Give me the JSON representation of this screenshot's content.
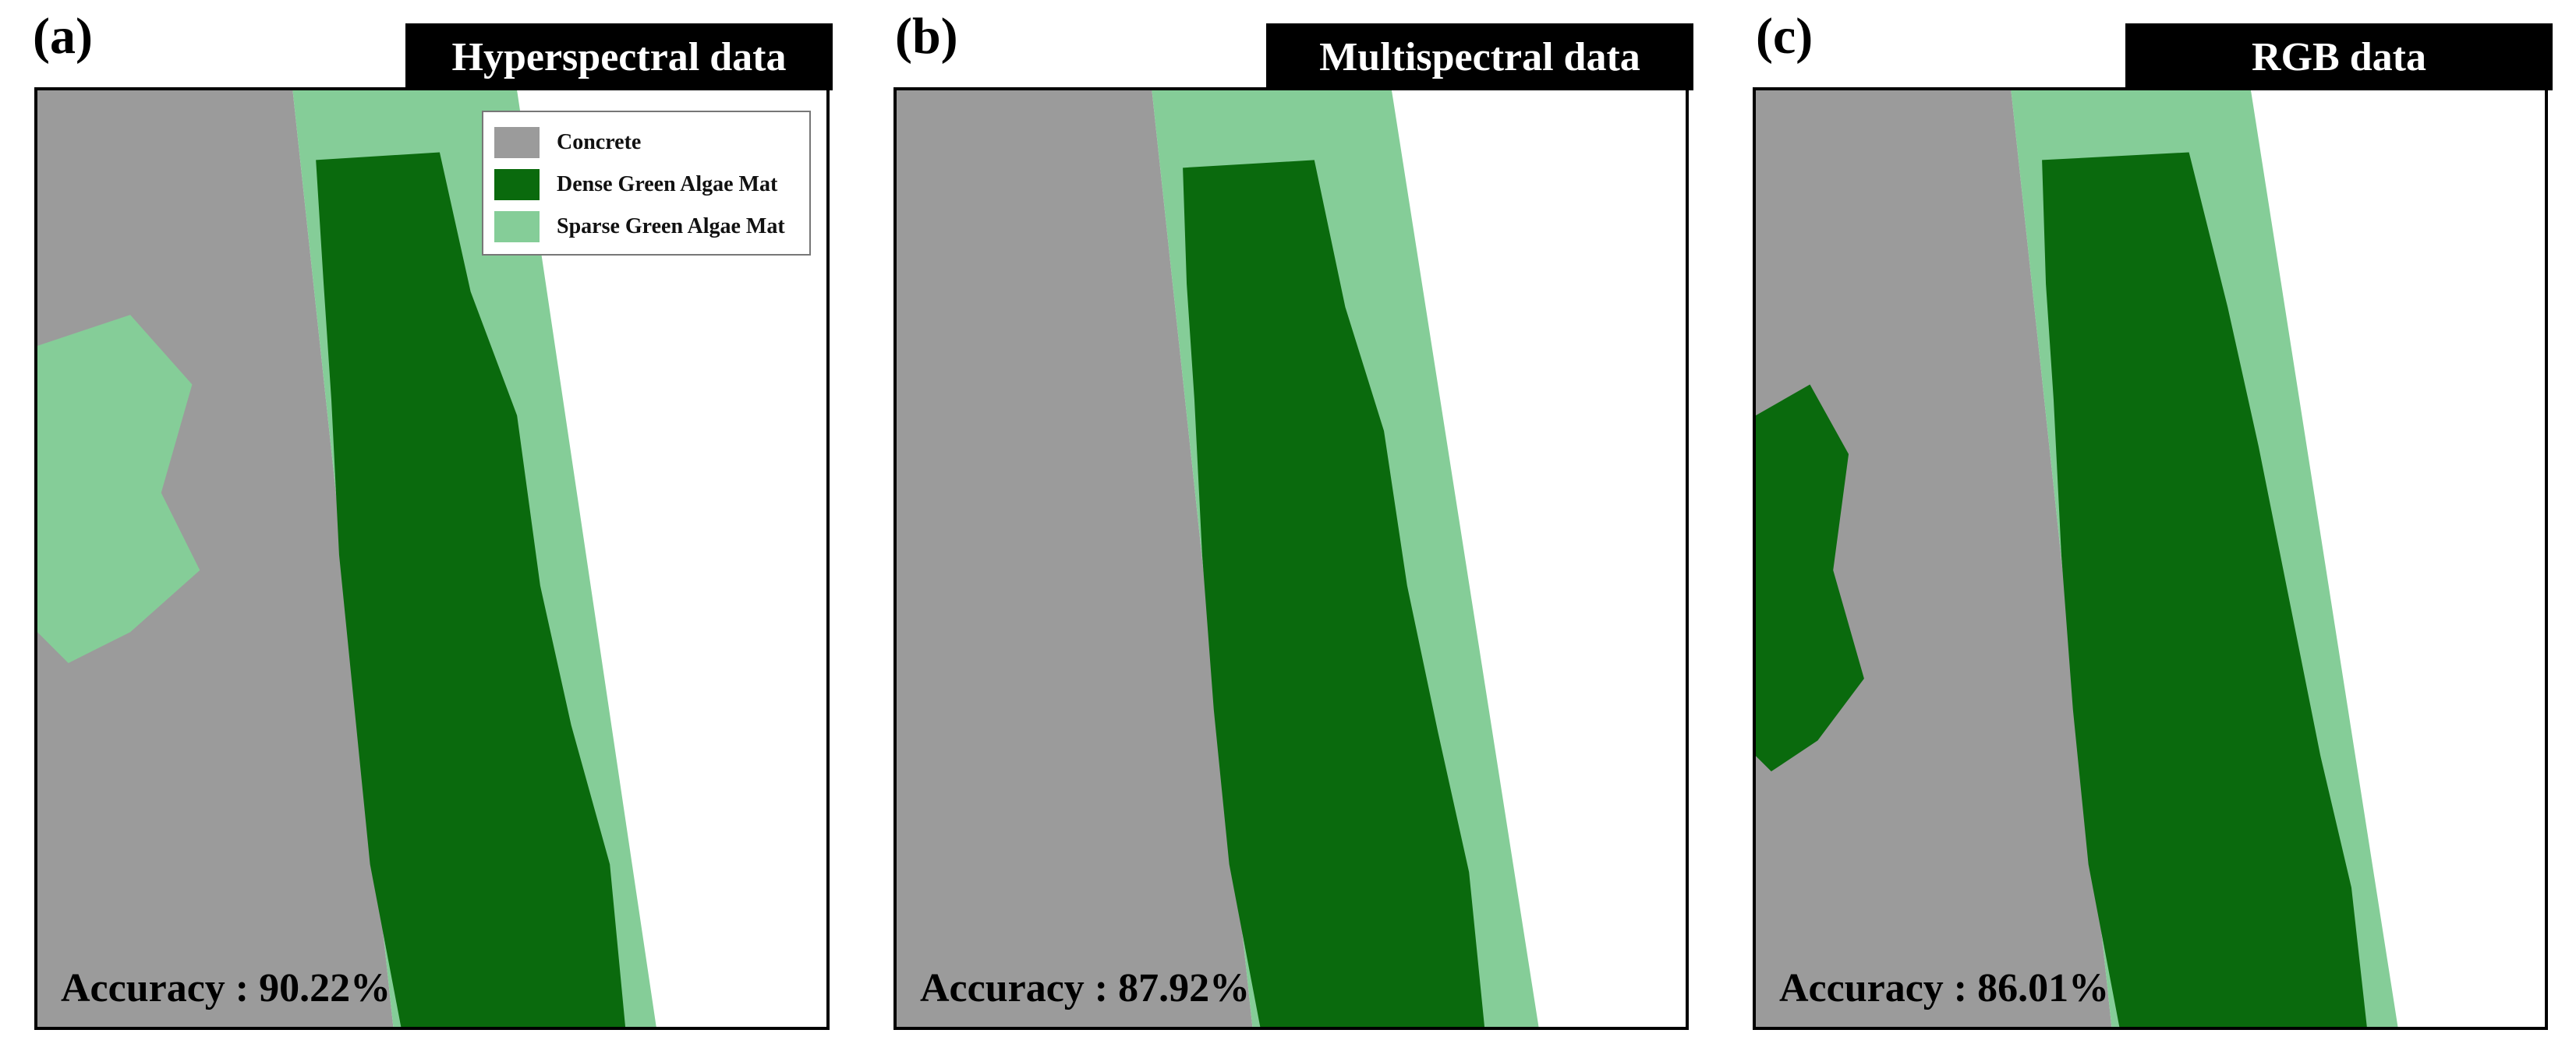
{
  "colors": {
    "concrete": "#9b9b9b",
    "dense": "#0a6a0d",
    "sparse": "#85cd98",
    "background": "#ffffff"
  },
  "legend": {
    "items": [
      {
        "label": "Concrete",
        "color": "#9b9b9b"
      },
      {
        "label": "Dense Green Algae Mat",
        "color": "#0a6a0d"
      },
      {
        "label": "Sparse Green Algae Mat",
        "color": "#85cd98"
      }
    ]
  },
  "panels": [
    {
      "letter": "(a)",
      "title": "Hyperspectral data",
      "accuracy": "Accuracy : 90.22%"
    },
    {
      "letter": "(b)",
      "title": "Multispectral data",
      "accuracy": "Accuracy : 87.92%"
    },
    {
      "letter": "(c)",
      "title": "RGB data",
      "accuracy": "Accuracy : 86.01%"
    }
  ]
}
